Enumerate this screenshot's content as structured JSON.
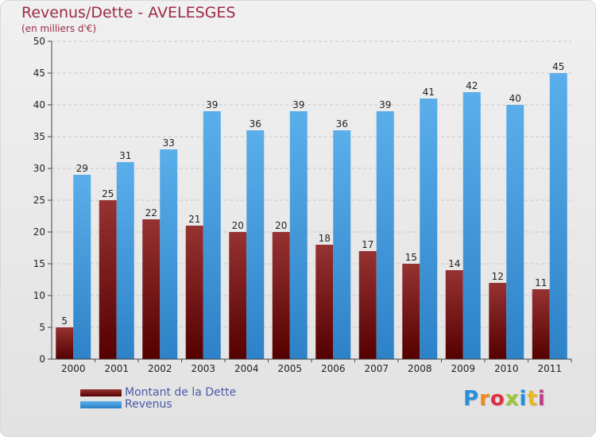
{
  "colors": {
    "dette_top": "#963232",
    "dette_bottom": "#550000",
    "revenus_top": "#5aaeea",
    "revenus_bottom": "#2d82c8",
    "grid": "#c8c8c8",
    "title": "#9c2a48",
    "legend_text": "#4a5aa8"
  },
  "logo": {
    "letters": [
      "P",
      "r",
      "o",
      "x",
      "i",
      "t",
      "i"
    ],
    "colors": [
      "#2a8fd8",
      "#f08a1c",
      "#e03040",
      "#9ac430",
      "#1e90e0",
      "#e8b81c",
      "#c04088"
    ]
  },
  "chart_data": {
    "type": "bar",
    "title": "Revenus/Dette - AVELESGES",
    "subtitle": "(en milliers d'€)",
    "xlabel": "",
    "ylabel": "",
    "ylim": [
      0,
      50
    ],
    "yticks": [
      0,
      5,
      10,
      15,
      20,
      25,
      30,
      35,
      40,
      45,
      50
    ],
    "grid": true,
    "categories": [
      "2000",
      "2001",
      "2002",
      "2003",
      "2004",
      "2005",
      "2006",
      "2007",
      "2008",
      "2009",
      "2010",
      "2011"
    ],
    "series": [
      {
        "name": "Montant de la Dette",
        "values": [
          5,
          25,
          22,
          21,
          20,
          20,
          18,
          17,
          15,
          14,
          12,
          11
        ]
      },
      {
        "name": "Revenus",
        "values": [
          29,
          31,
          33,
          39,
          36,
          39,
          36,
          39,
          41,
          42,
          40,
          45
        ]
      }
    ],
    "legend_position": "bottom-left"
  }
}
